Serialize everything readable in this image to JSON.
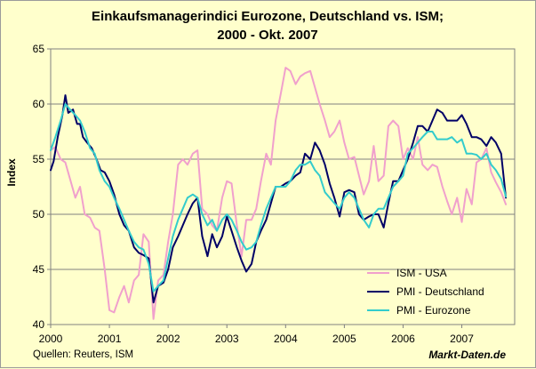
{
  "chart_data": {
    "type": "line",
    "title_line1": "Einkaufsmanagerindici Eurozone, Deutschland vs. ISM;",
    "title_line2": "2000 - Okt. 2007",
    "xlabel": "",
    "ylabel": "Index",
    "xlim": [
      2000,
      2007.9
    ],
    "ylim": [
      40,
      65
    ],
    "yticks": [
      40,
      45,
      50,
      55,
      60,
      65
    ],
    "xtick_labels": [
      "2000",
      "2001",
      "2002",
      "2003",
      "2004",
      "2005",
      "2006",
      "2007"
    ],
    "legend_position": "bottom-right",
    "series": [
      {
        "name": "ISM - USA",
        "color": "#f0a0cc",
        "points": [
          [
            2000.0,
            55.8
          ],
          [
            2000.08,
            56.1
          ],
          [
            2000.17,
            55.0
          ],
          [
            2000.25,
            54.7
          ],
          [
            2000.33,
            53.2
          ],
          [
            2000.42,
            51.5
          ],
          [
            2000.5,
            52.5
          ],
          [
            2000.58,
            50.0
          ],
          [
            2000.67,
            49.7
          ],
          [
            2000.75,
            48.8
          ],
          [
            2000.83,
            48.5
          ],
          [
            2000.92,
            45.0
          ],
          [
            2001.0,
            41.3
          ],
          [
            2001.08,
            41.1
          ],
          [
            2001.17,
            42.5
          ],
          [
            2001.25,
            43.5
          ],
          [
            2001.33,
            42.0
          ],
          [
            2001.42,
            44.0
          ],
          [
            2001.5,
            44.5
          ],
          [
            2001.58,
            48.2
          ],
          [
            2001.67,
            47.5
          ],
          [
            2001.75,
            40.5
          ],
          [
            2001.83,
            44.0
          ],
          [
            2001.92,
            44.5
          ],
          [
            2002.0,
            47.5
          ],
          [
            2002.08,
            50.0
          ],
          [
            2002.17,
            54.5
          ],
          [
            2002.25,
            55.0
          ],
          [
            2002.33,
            54.5
          ],
          [
            2002.42,
            55.5
          ],
          [
            2002.5,
            55.8
          ],
          [
            2002.58,
            50.5
          ],
          [
            2002.67,
            50.0
          ],
          [
            2002.75,
            49.0
          ],
          [
            2002.83,
            48.5
          ],
          [
            2002.92,
            51.5
          ],
          [
            2003.0,
            53.0
          ],
          [
            2003.08,
            52.8
          ],
          [
            2003.17,
            49.0
          ],
          [
            2003.25,
            46.2
          ],
          [
            2003.33,
            49.5
          ],
          [
            2003.42,
            49.5
          ],
          [
            2003.5,
            50.5
          ],
          [
            2003.58,
            53.0
          ],
          [
            2003.67,
            55.5
          ],
          [
            2003.75,
            54.5
          ],
          [
            2003.83,
            58.5
          ],
          [
            2003.92,
            61.0
          ],
          [
            2004.0,
            63.3
          ],
          [
            2004.08,
            63.0
          ],
          [
            2004.17,
            61.8
          ],
          [
            2004.25,
            62.5
          ],
          [
            2004.33,
            62.8
          ],
          [
            2004.42,
            63.0
          ],
          [
            2004.5,
            61.5
          ],
          [
            2004.58,
            60.0
          ],
          [
            2004.67,
            58.5
          ],
          [
            2004.75,
            57.0
          ],
          [
            2004.83,
            57.5
          ],
          [
            2004.92,
            58.5
          ],
          [
            2005.0,
            56.5
          ],
          [
            2005.08,
            55.0
          ],
          [
            2005.17,
            55.2
          ],
          [
            2005.25,
            53.5
          ],
          [
            2005.33,
            51.8
          ],
          [
            2005.42,
            53.0
          ],
          [
            2005.5,
            56.2
          ],
          [
            2005.58,
            53.0
          ],
          [
            2005.67,
            53.5
          ],
          [
            2005.75,
            58.0
          ],
          [
            2005.83,
            58.5
          ],
          [
            2005.92,
            58.0
          ],
          [
            2006.0,
            55.0
          ],
          [
            2006.08,
            56.0
          ],
          [
            2006.17,
            55.0
          ],
          [
            2006.25,
            57.0
          ],
          [
            2006.33,
            54.5
          ],
          [
            2006.42,
            54.0
          ],
          [
            2006.5,
            54.5
          ],
          [
            2006.58,
            54.3
          ],
          [
            2006.67,
            52.5
          ],
          [
            2006.75,
            51.2
          ],
          [
            2006.83,
            50.0
          ],
          [
            2006.92,
            51.5
          ],
          [
            2007.0,
            49.3
          ],
          [
            2007.08,
            52.3
          ],
          [
            2007.17,
            50.9
          ],
          [
            2007.25,
            54.7
          ],
          [
            2007.33,
            55.0
          ],
          [
            2007.42,
            56.0
          ],
          [
            2007.5,
            53.8
          ],
          [
            2007.58,
            52.9
          ],
          [
            2007.67,
            52.0
          ],
          [
            2007.75,
            50.9
          ]
        ]
      },
      {
        "name": "PMI - Deutschland",
        "color": "#000066",
        "points": [
          [
            2000.0,
            54.0
          ],
          [
            2000.05,
            54.8
          ],
          [
            2000.12,
            57.0
          ],
          [
            2000.2,
            59.0
          ],
          [
            2000.25,
            60.8
          ],
          [
            2000.3,
            59.2
          ],
          [
            2000.38,
            59.5
          ],
          [
            2000.45,
            58.2
          ],
          [
            2000.5,
            58.2
          ],
          [
            2000.55,
            57.0
          ],
          [
            2000.62,
            56.5
          ],
          [
            2000.7,
            56.0
          ],
          [
            2000.78,
            55.0
          ],
          [
            2000.85,
            54.0
          ],
          [
            2000.92,
            53.8
          ],
          [
            2001.0,
            53.0
          ],
          [
            2001.08,
            51.8
          ],
          [
            2001.17,
            50.0
          ],
          [
            2001.25,
            49.0
          ],
          [
            2001.33,
            48.5
          ],
          [
            2001.42,
            47.0
          ],
          [
            2001.5,
            46.5
          ],
          [
            2001.58,
            46.3
          ],
          [
            2001.67,
            46.0
          ],
          [
            2001.75,
            42.0
          ],
          [
            2001.83,
            43.5
          ],
          [
            2001.92,
            43.8
          ],
          [
            2002.0,
            45.0
          ],
          [
            2002.08,
            47.0
          ],
          [
            2002.17,
            48.0
          ],
          [
            2002.25,
            49.0
          ],
          [
            2002.33,
            50.0
          ],
          [
            2002.42,
            51.0
          ],
          [
            2002.5,
            51.5
          ],
          [
            2002.58,
            48.0
          ],
          [
            2002.67,
            46.2
          ],
          [
            2002.75,
            48.2
          ],
          [
            2002.83,
            47.0
          ],
          [
            2002.92,
            48.0
          ],
          [
            2003.0,
            49.8
          ],
          [
            2003.08,
            48.5
          ],
          [
            2003.17,
            47.0
          ],
          [
            2003.25,
            45.8
          ],
          [
            2003.33,
            44.8
          ],
          [
            2003.42,
            45.5
          ],
          [
            2003.5,
            47.5
          ],
          [
            2003.58,
            48.5
          ],
          [
            2003.67,
            49.5
          ],
          [
            2003.75,
            51.0
          ],
          [
            2003.83,
            52.5
          ],
          [
            2003.92,
            52.5
          ],
          [
            2004.0,
            52.8
          ],
          [
            2004.08,
            53.0
          ],
          [
            2004.17,
            53.5
          ],
          [
            2004.25,
            53.8
          ],
          [
            2004.33,
            55.5
          ],
          [
            2004.42,
            55.0
          ],
          [
            2004.5,
            56.5
          ],
          [
            2004.58,
            55.8
          ],
          [
            2004.67,
            54.5
          ],
          [
            2004.75,
            52.8
          ],
          [
            2004.83,
            51.5
          ],
          [
            2004.92,
            49.8
          ],
          [
            2005.0,
            52.0
          ],
          [
            2005.08,
            52.2
          ],
          [
            2005.17,
            52.0
          ],
          [
            2005.25,
            50.0
          ],
          [
            2005.33,
            49.5
          ],
          [
            2005.42,
            49.8
          ],
          [
            2005.5,
            50.0
          ],
          [
            2005.58,
            50.0
          ],
          [
            2005.67,
            48.8
          ],
          [
            2005.75,
            51.0
          ],
          [
            2005.83,
            53.0
          ],
          [
            2005.92,
            53.0
          ],
          [
            2006.0,
            54.0
          ],
          [
            2006.08,
            55.0
          ],
          [
            2006.17,
            56.5
          ],
          [
            2006.25,
            58.0
          ],
          [
            2006.33,
            58.0
          ],
          [
            2006.42,
            57.5
          ],
          [
            2006.5,
            58.5
          ],
          [
            2006.58,
            59.5
          ],
          [
            2006.67,
            59.2
          ],
          [
            2006.75,
            58.5
          ],
          [
            2006.83,
            58.5
          ],
          [
            2006.92,
            58.5
          ],
          [
            2007.0,
            59.0
          ],
          [
            2007.08,
            58.2
          ],
          [
            2007.17,
            57.0
          ],
          [
            2007.25,
            57.0
          ],
          [
            2007.33,
            56.8
          ],
          [
            2007.42,
            56.2
          ],
          [
            2007.5,
            57.0
          ],
          [
            2007.58,
            56.5
          ],
          [
            2007.67,
            55.5
          ],
          [
            2007.75,
            51.5
          ]
        ]
      },
      {
        "name": "PMI - Eurozone",
        "color": "#33cccc",
        "points": [
          [
            2000.0,
            55.8
          ],
          [
            2000.08,
            57.0
          ],
          [
            2000.17,
            58.5
          ],
          [
            2000.25,
            60.0
          ],
          [
            2000.33,
            59.5
          ],
          [
            2000.42,
            59.0
          ],
          [
            2000.5,
            58.5
          ],
          [
            2000.58,
            57.5
          ],
          [
            2000.67,
            56.0
          ],
          [
            2000.75,
            55.5
          ],
          [
            2000.83,
            54.0
          ],
          [
            2000.92,
            53.0
          ],
          [
            2001.0,
            52.5
          ],
          [
            2001.08,
            51.5
          ],
          [
            2001.17,
            50.5
          ],
          [
            2001.25,
            49.5
          ],
          [
            2001.33,
            48.5
          ],
          [
            2001.42,
            47.5
          ],
          [
            2001.5,
            47.0
          ],
          [
            2001.58,
            46.8
          ],
          [
            2001.67,
            45.5
          ],
          [
            2001.75,
            43.0
          ],
          [
            2001.83,
            43.5
          ],
          [
            2001.92,
            44.0
          ],
          [
            2002.0,
            46.0
          ],
          [
            2002.08,
            48.0
          ],
          [
            2002.17,
            49.5
          ],
          [
            2002.25,
            50.5
          ],
          [
            2002.33,
            51.5
          ],
          [
            2002.42,
            51.8
          ],
          [
            2002.5,
            51.5
          ],
          [
            2002.58,
            50.0
          ],
          [
            2002.67,
            49.0
          ],
          [
            2002.75,
            49.5
          ],
          [
            2002.83,
            48.5
          ],
          [
            2002.92,
            49.5
          ],
          [
            2003.0,
            50.0
          ],
          [
            2003.08,
            49.5
          ],
          [
            2003.17,
            48.5
          ],
          [
            2003.25,
            47.5
          ],
          [
            2003.33,
            46.8
          ],
          [
            2003.42,
            47.0
          ],
          [
            2003.5,
            47.5
          ],
          [
            2003.58,
            49.0
          ],
          [
            2003.67,
            50.5
          ],
          [
            2003.75,
            51.5
          ],
          [
            2003.83,
            52.5
          ],
          [
            2003.92,
            52.5
          ],
          [
            2004.0,
            52.5
          ],
          [
            2004.08,
            53.0
          ],
          [
            2004.17,
            54.0
          ],
          [
            2004.25,
            54.5
          ],
          [
            2004.33,
            54.5
          ],
          [
            2004.42,
            54.8
          ],
          [
            2004.5,
            54.0
          ],
          [
            2004.58,
            53.5
          ],
          [
            2004.67,
            52.0
          ],
          [
            2004.75,
            51.5
          ],
          [
            2004.83,
            51.0
          ],
          [
            2004.92,
            50.5
          ],
          [
            2005.0,
            51.5
          ],
          [
            2005.08,
            52.0
          ],
          [
            2005.17,
            51.5
          ],
          [
            2005.25,
            50.5
          ],
          [
            2005.33,
            49.5
          ],
          [
            2005.42,
            48.8
          ],
          [
            2005.5,
            50.0
          ],
          [
            2005.58,
            50.5
          ],
          [
            2005.67,
            50.5
          ],
          [
            2005.75,
            51.5
          ],
          [
            2005.83,
            52.5
          ],
          [
            2005.92,
            53.0
          ],
          [
            2006.0,
            53.5
          ],
          [
            2006.08,
            55.5
          ],
          [
            2006.17,
            56.0
          ],
          [
            2006.25,
            56.5
          ],
          [
            2006.33,
            57.0
          ],
          [
            2006.42,
            57.5
          ],
          [
            2006.5,
            57.5
          ],
          [
            2006.58,
            56.8
          ],
          [
            2006.67,
            56.8
          ],
          [
            2006.75,
            56.8
          ],
          [
            2006.83,
            57.0
          ],
          [
            2006.92,
            56.5
          ],
          [
            2007.0,
            56.8
          ],
          [
            2007.08,
            55.5
          ],
          [
            2007.17,
            55.5
          ],
          [
            2007.25,
            55.4
          ],
          [
            2007.33,
            55.0
          ],
          [
            2007.42,
            55.5
          ],
          [
            2007.5,
            54.5
          ],
          [
            2007.58,
            54.0
          ],
          [
            2007.67,
            53.2
          ],
          [
            2007.75,
            51.6
          ]
        ]
      }
    ]
  },
  "footer": {
    "source_text": "Quellen: Reuters, ISM",
    "brand_text": "Markt-Daten.de"
  }
}
